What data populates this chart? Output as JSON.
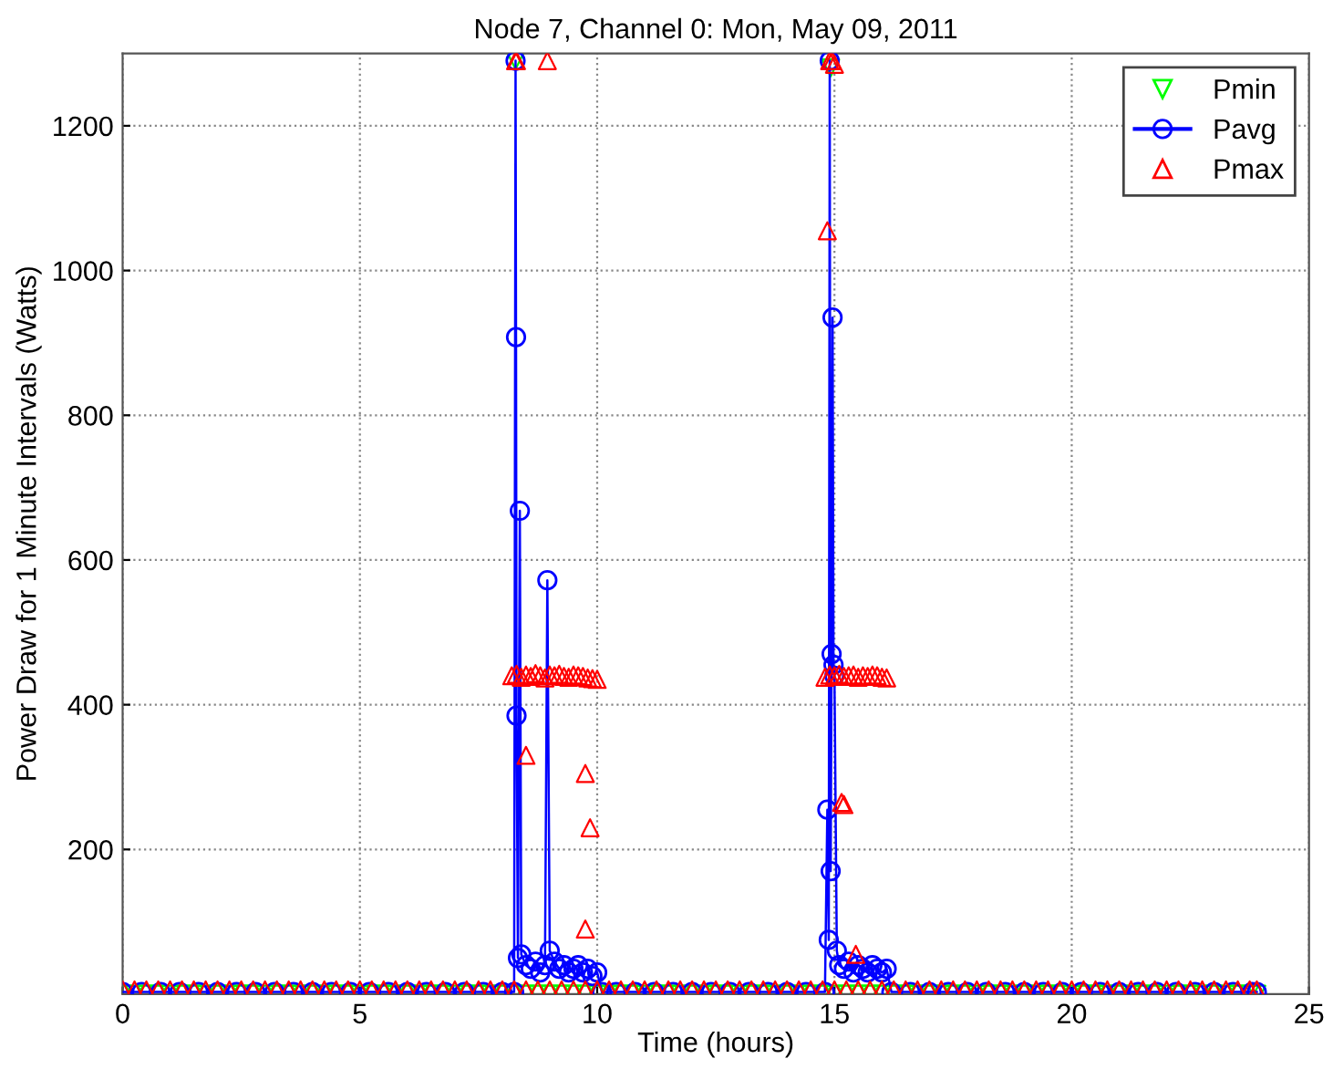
{
  "chart_data": {
    "type": "line",
    "title": "Node 7, Channel 0: Mon, May 09, 2011",
    "xlabel": "Time (hours)",
    "ylabel": "Power Draw for 1 Minute Intervals (Watts)",
    "xlim": [
      0,
      25
    ],
    "xticks": [
      0,
      5,
      10,
      15,
      20,
      25
    ],
    "ylim": [
      0,
      1300
    ],
    "yticks": [
      200,
      400,
      600,
      800,
      1000,
      1200
    ],
    "grid": true,
    "legend": "top right",
    "series": [
      {
        "name": "Pmin",
        "type": "scatter",
        "marker": "triangle-down",
        "color": "#00ff00",
        "x": [
          0,
          0.25,
          0.5,
          0.75,
          1,
          1.25,
          1.5,
          1.75,
          2,
          2.25,
          2.5,
          2.75,
          3,
          3.25,
          3.5,
          3.75,
          4,
          4.25,
          4.5,
          4.75,
          5,
          5.25,
          5.5,
          5.75,
          6,
          6.25,
          6.5,
          6.75,
          7,
          7.25,
          7.5,
          7.75,
          8,
          8.25,
          8.5,
          8.75,
          9,
          9.25,
          9.5,
          9.75,
          10,
          10.25,
          10.5,
          10.75,
          11,
          11.25,
          11.5,
          11.75,
          12,
          12.25,
          12.5,
          12.75,
          13,
          13.25,
          13.5,
          13.75,
          14,
          14.25,
          14.5,
          14.75,
          15,
          15.25,
          15.5,
          15.75,
          16,
          16.25,
          16.5,
          16.75,
          17,
          17.25,
          17.5,
          17.75,
          18,
          18.25,
          18.5,
          18.75,
          19,
          19.25,
          19.5,
          19.75,
          20,
          20.25,
          20.5,
          20.75,
          21,
          21.25,
          21.5,
          21.75,
          22,
          22.25,
          22.5,
          22.75,
          23,
          23.25,
          23.5,
          23.75,
          23.9,
          8.28,
          14.92
        ],
        "values": [
          0,
          0,
          0,
          0,
          0,
          0,
          0,
          0,
          0,
          0,
          0,
          0,
          0,
          0,
          0,
          0,
          0,
          0,
          0,
          0,
          0,
          0,
          0,
          0,
          0,
          0,
          0,
          0,
          0,
          0,
          0,
          0,
          0,
          0,
          0,
          0,
          0,
          0,
          0,
          0,
          0,
          0,
          0,
          0,
          0,
          0,
          0,
          0,
          0,
          0,
          0,
          0,
          0,
          0,
          0,
          0,
          0,
          0,
          0,
          0,
          0,
          0,
          0,
          0,
          0,
          0,
          0,
          0,
          0,
          0,
          0,
          0,
          0,
          0,
          0,
          0,
          0,
          0,
          0,
          0,
          0,
          0,
          0,
          0,
          0,
          0,
          0,
          0,
          0,
          0,
          0,
          0,
          0,
          0,
          0,
          0,
          0,
          1290,
          1280
        ]
      },
      {
        "name": "Pavg",
        "marker": "circle",
        "line_style": "solid",
        "color": "#0000ff",
        "x": [
          0,
          0.4,
          0.8,
          1.2,
          1.6,
          2,
          2.4,
          2.8,
          3.2,
          3.6,
          4,
          4.4,
          4.8,
          5.2,
          5.6,
          6,
          6.4,
          6.8,
          7.2,
          7.6,
          8,
          8.25,
          8.28,
          8.29,
          8.3,
          8.33,
          8.37,
          8.4,
          8.5,
          8.6,
          8.7,
          8.8,
          8.9,
          8.95,
          9,
          9.1,
          9.2,
          9.3,
          9.4,
          9.5,
          9.6,
          9.7,
          9.8,
          9.9,
          10,
          10.1,
          10.4,
          10.8,
          11.2,
          11.6,
          12,
          12.4,
          12.8,
          13.2,
          13.6,
          14,
          14.4,
          14.8,
          14.85,
          14.88,
          14.9,
          14.92,
          14.94,
          14.96,
          14.98,
          15,
          15.05,
          15.1,
          15.2,
          15.3,
          15.4,
          15.5,
          15.6,
          15.7,
          15.8,
          15.9,
          16,
          16.1,
          16.2,
          16.6,
          17,
          17.4,
          17.8,
          18.2,
          18.6,
          19,
          19.4,
          19.8,
          20.2,
          20.6,
          21,
          21.4,
          21.8,
          22.2,
          22.6,
          23,
          23.4,
          23.8,
          23.9
        ],
        "values": [
          3,
          3,
          3,
          3,
          3,
          3,
          3,
          3,
          3,
          3,
          3,
          3,
          3,
          3,
          3,
          3,
          3,
          3,
          3,
          3,
          3,
          3,
          1290,
          908,
          385,
          50,
          668,
          55,
          40,
          35,
          45,
          30,
          40,
          572,
          60,
          45,
          35,
          40,
          30,
          35,
          40,
          30,
          35,
          25,
          30,
          3,
          3,
          3,
          3,
          3,
          3,
          3,
          3,
          3,
          3,
          3,
          3,
          3,
          255,
          75,
          1290,
          170,
          470,
          935,
          455,
          440,
          60,
          40,
          35,
          45,
          30,
          40,
          35,
          30,
          40,
          35,
          30,
          35,
          3,
          3,
          3,
          3,
          3,
          3,
          3,
          3,
          3,
          3,
          3,
          3,
          3,
          3,
          3,
          3,
          3,
          3,
          3,
          3,
          3
        ]
      },
      {
        "name": "Pmax",
        "type": "scatter",
        "marker": "triangle",
        "color": "#ff0000",
        "x": [
          0,
          0.25,
          0.5,
          0.75,
          1,
          1.25,
          1.5,
          1.75,
          2,
          2.25,
          2.5,
          2.75,
          3,
          3.25,
          3.5,
          3.75,
          4,
          4.25,
          4.5,
          4.75,
          5,
          5.25,
          5.5,
          5.75,
          6,
          6.25,
          6.5,
          6.75,
          7,
          7.25,
          7.5,
          7.75,
          8,
          8.25,
          8.5,
          8.75,
          9,
          9.25,
          9.5,
          9.75,
          10,
          10.25,
          10.5,
          10.75,
          11,
          11.25,
          11.5,
          11.75,
          12,
          12.25,
          12.5,
          12.75,
          13,
          13.25,
          13.5,
          13.75,
          14,
          14.25,
          14.5,
          14.75,
          15,
          15.25,
          15.5,
          15.75,
          16,
          16.25,
          16.5,
          16.75,
          17,
          17.25,
          17.5,
          17.75,
          18,
          18.25,
          18.5,
          18.75,
          19,
          19.25,
          19.5,
          19.75,
          20,
          20.25,
          20.5,
          20.75,
          21,
          21.25,
          21.5,
          21.75,
          22,
          22.25,
          22.5,
          22.75,
          23,
          23.25,
          23.5,
          23.75,
          23.9,
          8.2,
          8.3,
          8.4,
          8.5,
          8.6,
          8.7,
          8.8,
          8.9,
          9,
          9.1,
          9.2,
          9.3,
          9.4,
          9.5,
          9.6,
          9.7,
          9.8,
          9.9,
          10,
          14.8,
          14.9,
          15,
          15.1,
          15.2,
          15.3,
          15.4,
          15.5,
          15.6,
          15.7,
          15.8,
          15.9,
          16,
          16.1,
          8.28,
          8.3,
          8.95,
          8.5,
          9.75,
          9.85,
          9.75,
          14.9,
          14.95,
          15,
          14.85,
          15.15,
          15.2,
          15.45
        ],
        "values": [
          6,
          6,
          6,
          6,
          6,
          6,
          6,
          6,
          6,
          6,
          6,
          6,
          6,
          6,
          6,
          6,
          6,
          6,
          6,
          6,
          6,
          6,
          6,
          6,
          6,
          6,
          6,
          6,
          6,
          6,
          6,
          6,
          6,
          6,
          6,
          6,
          6,
          6,
          6,
          6,
          6,
          6,
          6,
          6,
          6,
          6,
          6,
          6,
          6,
          6,
          6,
          6,
          6,
          6,
          6,
          6,
          6,
          6,
          6,
          6,
          6,
          6,
          6,
          6,
          6,
          6,
          6,
          6,
          6,
          6,
          6,
          6,
          6,
          6,
          6,
          6,
          6,
          6,
          6,
          6,
          6,
          6,
          6,
          6,
          6,
          6,
          6,
          6,
          6,
          6,
          6,
          6,
          6,
          6,
          6,
          6,
          6,
          440,
          442,
          438,
          441,
          439,
          443,
          440,
          437,
          441,
          440,
          442,
          439,
          438,
          441,
          440,
          439,
          437,
          436,
          435,
          438,
          441,
          440,
          442,
          439,
          440,
          441,
          438,
          440,
          439,
          441,
          440,
          438,
          437,
          1290,
          1290,
          1290,
          330,
          305,
          230,
          90,
          1290,
          1290,
          1285,
          1055,
          265,
          262,
          55
        ]
      }
    ]
  }
}
